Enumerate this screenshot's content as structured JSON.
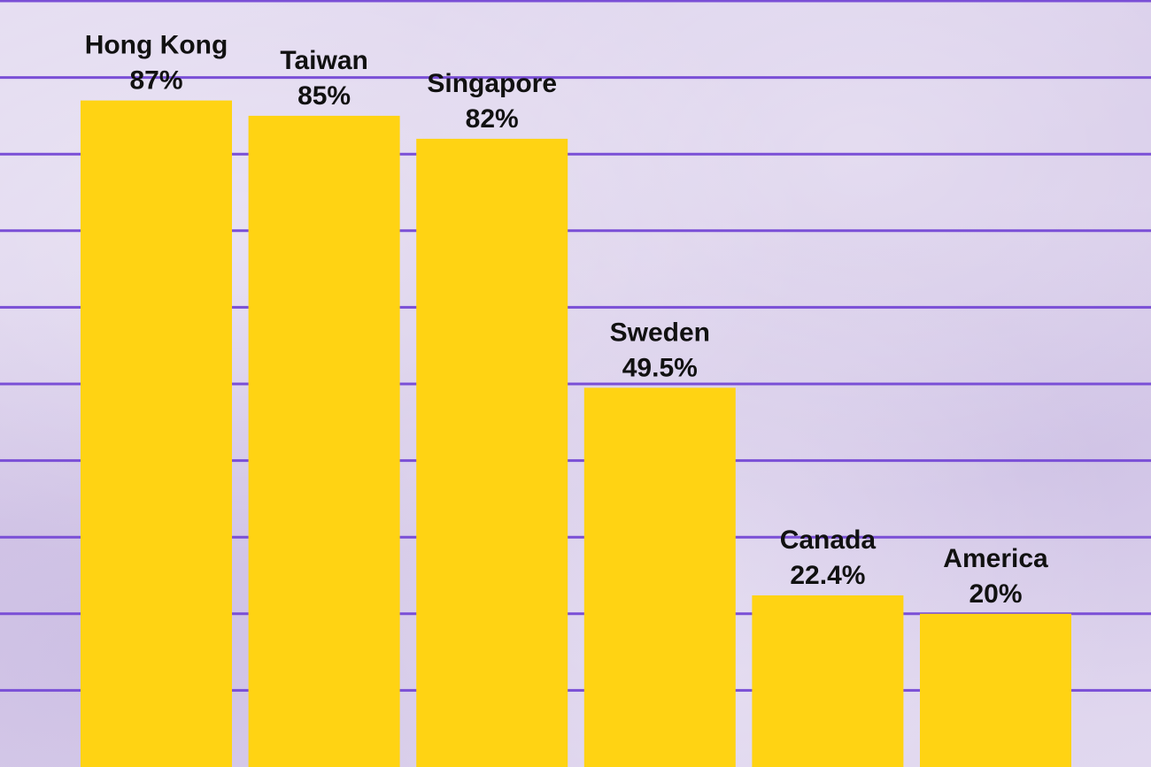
{
  "chart_data": {
    "type": "bar",
    "categories": [
      "Hong Kong",
      "Taiwan",
      "Singapore",
      "Sweden",
      "Canada",
      "America"
    ],
    "values": [
      87,
      85,
      82,
      49.5,
      22.4,
      20
    ],
    "value_labels": [
      "87%",
      "85%",
      "82%",
      "49.5%",
      "22.4%",
      "20%"
    ],
    "title": "",
    "xlabel": "",
    "ylabel": "",
    "ylim": [
      0,
      100
    ],
    "grid": true,
    "legend": "none",
    "colors": {
      "bar": "#ffd313",
      "grid": "#7a4fd6",
      "text": "#111111",
      "background": "#ddd3ec"
    }
  }
}
